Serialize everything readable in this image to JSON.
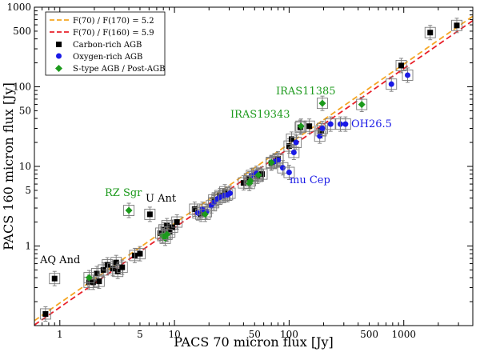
{
  "chart_data": {
    "type": "scatter",
    "title": "",
    "xlabel": "PACS 70 micron flux [Jy]",
    "ylabel": "PACS 160 micron flux [Jy]",
    "xscale": "log",
    "yscale": "log",
    "xlim": [
      0.6,
      4000
    ],
    "ylim": [
      0.1,
      1000
    ],
    "grid": false,
    "legend_position": "top-left",
    "x_ticks": [
      {
        "value": 1,
        "label": "1"
      },
      {
        "value": 5,
        "label": "5"
      },
      {
        "value": 10,
        "label": "10"
      },
      {
        "value": 50,
        "label": "50"
      },
      {
        "value": 100,
        "label": "100"
      },
      {
        "value": 500,
        "label": "500"
      },
      {
        "value": 1000,
        "label": "1000"
      }
    ],
    "y_ticks": [
      {
        "value": 1,
        "label": "1"
      },
      {
        "value": 5,
        "label": "5"
      },
      {
        "value": 10,
        "label": "10"
      },
      {
        "value": 50,
        "label": "50"
      },
      {
        "value": 100,
        "label": "100"
      },
      {
        "value": 500,
        "label": "500"
      },
      {
        "value": 1000,
        "label": "1000"
      }
    ],
    "lines": [
      {
        "name": "F(70) / F(170) = 5.2",
        "ratio": 5.2,
        "color": "#f5a623",
        "dash": "dashed"
      },
      {
        "name": "F(70) / F(160) = 5.9",
        "ratio": 5.9,
        "color": "#e8202a",
        "dash": "dashed"
      }
    ],
    "series": [
      {
        "name": "Carbon-rich AGB",
        "marker": "square",
        "color": "#000000",
        "points": [
          [
            0.75,
            0.14
          ],
          [
            0.9,
            0.39
          ],
          [
            1.8,
            0.35
          ],
          [
            1.95,
            0.35
          ],
          [
            2.1,
            0.45
          ],
          [
            2.2,
            0.36
          ],
          [
            2.4,
            0.5
          ],
          [
            2.6,
            0.58
          ],
          [
            2.9,
            0.52
          ],
          [
            3.1,
            0.62
          ],
          [
            3.2,
            0.48
          ],
          [
            3.5,
            0.54
          ],
          [
            4.5,
            0.76
          ],
          [
            5.0,
            0.8
          ],
          [
            6.1,
            2.5
          ],
          [
            7.6,
            1.45
          ],
          [
            8.1,
            1.6
          ],
          [
            8.6,
            1.8
          ],
          [
            9.1,
            1.5
          ],
          [
            9.6,
            1.72
          ],
          [
            10.5,
            2.0
          ],
          [
            15.0,
            2.9
          ],
          [
            17.0,
            2.5
          ],
          [
            22.0,
            3.8
          ],
          [
            25.0,
            4.3
          ],
          [
            27.5,
            4.8
          ],
          [
            40.0,
            6.2
          ],
          [
            45.0,
            7.0
          ],
          [
            53.0,
            7.5
          ],
          [
            58.0,
            8.0
          ],
          [
            70.0,
            11.0
          ],
          [
            80.0,
            12.5
          ],
          [
            100.0,
            18.0
          ],
          [
            105.0,
            22.0
          ],
          [
            125.0,
            31.0
          ],
          [
            150.0,
            32.0
          ],
          [
            190.0,
            28.0
          ],
          [
            950.0,
            185.0
          ],
          [
            1700.0,
            480.0
          ],
          [
            2900.0,
            590.0
          ]
        ]
      },
      {
        "name": "Oxygen-rich AGB",
        "marker": "circle",
        "color": "#1a1ae6",
        "points": [
          [
            16.0,
            2.6
          ],
          [
            17.5,
            2.9
          ],
          [
            19.0,
            2.7
          ],
          [
            21.0,
            3.2
          ],
          [
            22.0,
            3.5
          ],
          [
            23.5,
            3.9
          ],
          [
            25.0,
            4.1
          ],
          [
            27.0,
            4.3
          ],
          [
            29.0,
            4.4
          ],
          [
            30.5,
            4.6
          ],
          [
            47.0,
            7.7
          ],
          [
            52.0,
            8.2
          ],
          [
            75.0,
            11.5
          ],
          [
            80.0,
            12.0
          ],
          [
            88.0,
            9.6
          ],
          [
            100.0,
            8.4
          ],
          [
            110.0,
            15.0
          ],
          [
            115.0,
            20.0
          ],
          [
            185.0,
            24.0
          ],
          [
            195.0,
            30.0
          ],
          [
            230.0,
            34.0
          ],
          [
            280.0,
            34.0
          ],
          [
            310.0,
            34.0
          ],
          [
            780.0,
            108.0
          ],
          [
            1080.0,
            140.0
          ]
        ]
      },
      {
        "name": "S-type AGB / Post-AGB",
        "marker": "diamond",
        "color": "#1c9a1c",
        "points": [
          [
            1.8,
            0.4
          ],
          [
            4.0,
            2.8
          ],
          [
            7.9,
            1.35
          ],
          [
            8.3,
            1.25
          ],
          [
            8.6,
            1.4
          ],
          [
            18.5,
            2.5
          ],
          [
            45.0,
            6.1
          ],
          [
            46.0,
            6.6
          ],
          [
            54.0,
            7.8
          ],
          [
            70.0,
            11.2
          ],
          [
            127.0,
            32.0
          ],
          [
            195.0,
            62.0
          ],
          [
            430.0,
            60.0
          ]
        ]
      }
    ],
    "annotations": [
      {
        "text": "AQ And",
        "color": "#000000"
      },
      {
        "text": "RZ Sgr",
        "color": "#1c9a1c"
      },
      {
        "text": "U Ant",
        "color": "#000000"
      },
      {
        "text": "IRAS19343",
        "color": "#1c9a1c"
      },
      {
        "text": "IRAS11385",
        "color": "#1c9a1c"
      },
      {
        "text": "mu Cep",
        "color": "#1a1ae6"
      },
      {
        "text": "OH26.5",
        "color": "#1a1ae6"
      }
    ]
  }
}
